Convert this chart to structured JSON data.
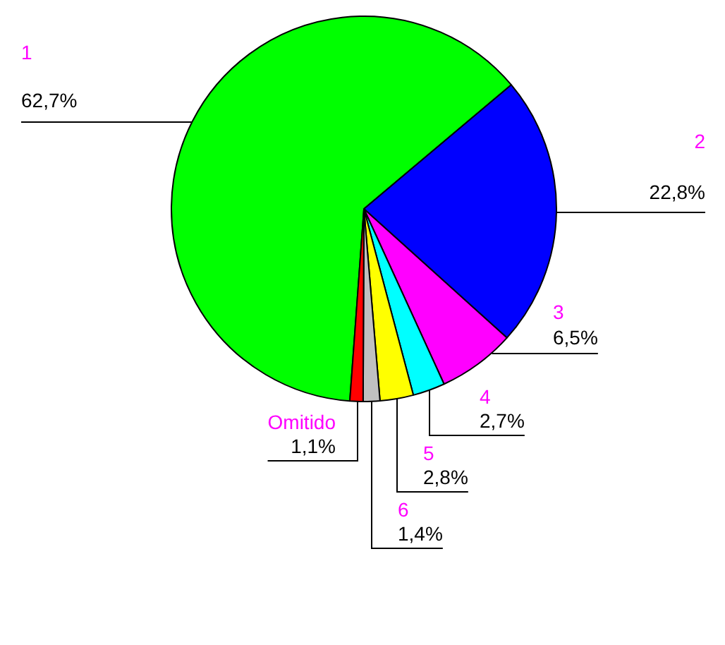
{
  "chart_data": {
    "type": "pie",
    "categories": [
      "1",
      "2",
      "3",
      "4",
      "5",
      "6",
      "Omitido"
    ],
    "values": [
      62.7,
      22.8,
      6.5,
      2.7,
      2.8,
      1.4,
      1.1
    ],
    "value_labels": [
      "62,7%",
      "22,8%",
      "6,5%",
      "2,7%",
      "2,8%",
      "1,4%",
      "1,1%"
    ],
    "colors": [
      "#00ff00",
      "#0000ff",
      "#ff00ff",
      "#00ffff",
      "#ffff00",
      "#c0c0c0",
      "#ff0000"
    ],
    "legend": false
  }
}
